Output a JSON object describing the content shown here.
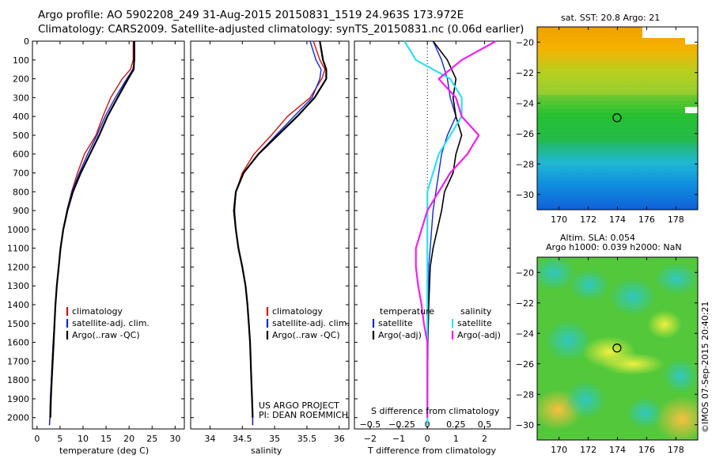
{
  "header": {
    "line1": "Argo profile: AO 5902208_249 31-Aug-2015 20150831_1519 24.963S 173.972E",
    "line2": "Climatology: CARS2009. Satellite-adjusted climatology: synTS_20150831.nc (0.06d earlier)"
  },
  "colors": {
    "climatology": "#d01010",
    "satellite": "#1028d0",
    "argo": "#000000",
    "salinity_satellite": "#30e0f0",
    "salinity_argo": "#f020f0"
  },
  "chart_data": [
    {
      "id": "temperature",
      "type": "line",
      "xlabel": "temperature (deg C)",
      "ylabel": "",
      "xlim": [
        -1,
        32
      ],
      "ylim": [
        2060,
        0
      ],
      "xticks": [
        0,
        5,
        10,
        15,
        20,
        25,
        30
      ],
      "yticks": [
        0,
        100,
        200,
        300,
        400,
        500,
        600,
        700,
        800,
        900,
        1000,
        1100,
        1200,
        1300,
        1400,
        1500,
        1600,
        1700,
        1800,
        1900,
        2000
      ],
      "legend": {
        "placement": "lower-center",
        "entries": [
          "climatology",
          "satellite-adj. clim.",
          "Argo(..raw -QC)"
        ]
      },
      "series": [
        {
          "name": "climatology",
          "color": "#d01010",
          "width": 1.4,
          "points": [
            [
              20.9,
              0
            ],
            [
              20.9,
              100
            ],
            [
              20.3,
              150
            ],
            [
              18.5,
              200
            ],
            [
              16,
              300
            ],
            [
              14.3,
              400
            ],
            [
              12.8,
              500
            ],
            [
              10.3,
              600
            ],
            [
              8.8,
              700
            ],
            [
              7.5,
              800
            ],
            [
              6.5,
              900
            ],
            [
              5.7,
              1000
            ],
            [
              5.1,
              1100
            ],
            [
              4.7,
              1200
            ],
            [
              4.3,
              1300
            ],
            [
              4,
              1400
            ],
            [
              3.8,
              1500
            ],
            [
              3.5,
              1600
            ],
            [
              3.3,
              1700
            ],
            [
              3.1,
              1800
            ],
            [
              2.9,
              1900
            ],
            [
              2.8,
              2000
            ],
            [
              2.7,
              2040
            ]
          ]
        },
        {
          "name": "satellite-adj. clim.",
          "color": "#1028d0",
          "width": 1.4,
          "points": [
            [
              21.2,
              0
            ],
            [
              21.2,
              100
            ],
            [
              20.8,
              150
            ],
            [
              19.5,
              200
            ],
            [
              17,
              300
            ],
            [
              14.8,
              400
            ],
            [
              13,
              500
            ],
            [
              11,
              600
            ],
            [
              9.2,
              700
            ],
            [
              7.6,
              800
            ],
            [
              6.5,
              900
            ],
            [
              5.7,
              1000
            ],
            [
              5.1,
              1100
            ],
            [
              4.7,
              1200
            ],
            [
              4.3,
              1300
            ],
            [
              4,
              1400
            ],
            [
              3.8,
              1500
            ],
            [
              3.5,
              1600
            ],
            [
              3.3,
              1700
            ],
            [
              3.1,
              1800
            ],
            [
              2.9,
              1900
            ],
            [
              2.8,
              2000
            ],
            [
              2.7,
              2040
            ]
          ]
        },
        {
          "name": "Argo(..raw -QC)",
          "color": "#000000",
          "width": 2.2,
          "points": [
            [
              21.1,
              0
            ],
            [
              21.1,
              100
            ],
            [
              21,
              150
            ],
            [
              19.8,
              200
            ],
            [
              17.5,
              300
            ],
            [
              15.3,
              400
            ],
            [
              13.5,
              500
            ],
            [
              11.5,
              600
            ],
            [
              9.5,
              700
            ],
            [
              7.8,
              800
            ],
            [
              6.6,
              900
            ],
            [
              5.7,
              1000
            ],
            [
              5.1,
              1100
            ],
            [
              4.7,
              1200
            ],
            [
              4.3,
              1300
            ],
            [
              4,
              1400
            ],
            [
              3.8,
              1500
            ],
            [
              3.6,
              1600
            ],
            [
              3.4,
              1700
            ],
            [
              3.2,
              1800
            ],
            [
              3,
              1900
            ],
            [
              2.9,
              2000
            ]
          ]
        }
      ]
    },
    {
      "id": "salinity",
      "type": "line",
      "xlabel": "salinity",
      "xlim": [
        33.7,
        36.15
      ],
      "ylim": [
        2060,
        0
      ],
      "xticks": [
        34,
        34.5,
        35,
        35.5,
        36
      ],
      "legend": {
        "placement": "lower-center",
        "entries": [
          "climatology",
          "satellite-adj. clim.",
          "Argo(..raw -QC)"
        ]
      },
      "annotation": {
        "line1": "US ARGO PROJECT",
        "line2": "PI: DEAN ROEMMICH"
      },
      "series": [
        {
          "name": "climatology",
          "color": "#d01010",
          "width": 1.4,
          "points": [
            [
              35.6,
              0
            ],
            [
              35.7,
              100
            ],
            [
              35.78,
              150
            ],
            [
              35.73,
              200
            ],
            [
              35.55,
              300
            ],
            [
              35.2,
              400
            ],
            [
              34.95,
              500
            ],
            [
              34.68,
              600
            ],
            [
              34.5,
              700
            ],
            [
              34.4,
              800
            ],
            [
              34.38,
              900
            ],
            [
              34.4,
              1000
            ],
            [
              34.44,
              1100
            ],
            [
              34.5,
              1200
            ],
            [
              34.55,
              1300
            ],
            [
              34.58,
              1400
            ],
            [
              34.6,
              1500
            ],
            [
              34.62,
              1600
            ],
            [
              34.63,
              1700
            ],
            [
              34.64,
              1800
            ],
            [
              34.65,
              1900
            ],
            [
              34.66,
              2000
            ],
            [
              34.66,
              2040
            ]
          ]
        },
        {
          "name": "satellite-adj. clim.",
          "color": "#1028d0",
          "width": 1.4,
          "points": [
            [
              35.55,
              0
            ],
            [
              35.64,
              100
            ],
            [
              35.72,
              150
            ],
            [
              35.7,
              200
            ],
            [
              35.58,
              300
            ],
            [
              35.3,
              400
            ],
            [
              35.02,
              500
            ],
            [
              34.75,
              600
            ],
            [
              34.52,
              700
            ],
            [
              34.4,
              800
            ],
            [
              34.38,
              900
            ],
            [
              34.4,
              1000
            ],
            [
              34.44,
              1100
            ],
            [
              34.5,
              1200
            ],
            [
              34.55,
              1300
            ],
            [
              34.58,
              1400
            ],
            [
              34.6,
              1500
            ],
            [
              34.62,
              1600
            ],
            [
              34.63,
              1700
            ],
            [
              34.64,
              1800
            ],
            [
              34.65,
              1900
            ],
            [
              34.66,
              2000
            ],
            [
              34.66,
              2040
            ]
          ]
        },
        {
          "name": "Argo(..raw -QC)",
          "color": "#000000",
          "width": 2.2,
          "points": [
            [
              35.7,
              0
            ],
            [
              35.75,
              100
            ],
            [
              35.8,
              150
            ],
            [
              35.8,
              200
            ],
            [
              35.62,
              300
            ],
            [
              35.35,
              400
            ],
            [
              35.05,
              500
            ],
            [
              34.75,
              600
            ],
            [
              34.52,
              700
            ],
            [
              34.4,
              800
            ],
            [
              34.37,
              900
            ],
            [
              34.4,
              1000
            ],
            [
              34.44,
              1100
            ],
            [
              34.5,
              1200
            ],
            [
              34.55,
              1300
            ],
            [
              34.58,
              1400
            ],
            [
              34.6,
              1500
            ],
            [
              34.62,
              1600
            ],
            [
              34.63,
              1700
            ],
            [
              34.64,
              1800
            ],
            [
              34.65,
              1900
            ],
            [
              34.66,
              2000
            ]
          ]
        }
      ]
    },
    {
      "id": "difference",
      "type": "line",
      "xlabel": "T difference from climatology",
      "xlabel2": "S difference from climatology",
      "xlim": [
        -2.55,
        2.9
      ],
      "ylim": [
        2060,
        0
      ],
      "xticks_t": [
        -2,
        -1,
        0,
        1,
        2
      ],
      "xticks_s": [
        -0.5,
        -0.25,
        0,
        0.25,
        0.5
      ],
      "xticks_s_labels": [
        "−0.5",
        "−0.25",
        "0",
        "0.25",
        "0.5"
      ],
      "xticks_t_labels": [
        "−2",
        "−1",
        "0",
        "1",
        "2"
      ],
      "legend": {
        "placement": "lower-center",
        "groups": [
          {
            "title": "temperature",
            "entries": [
              "satellite",
              "Argo(-adj)"
            ]
          },
          {
            "title": "salinity",
            "entries": [
              "satellite",
              "Argo(-adj)"
            ]
          }
        ]
      },
      "series": [
        {
          "name": "temperature satellite",
          "color": "#1028d0",
          "width": 1.4,
          "points": [
            [
              0.2,
              0
            ],
            [
              0.5,
              100
            ],
            [
              0.7,
              200
            ],
            [
              0.8,
              300
            ],
            [
              1,
              400
            ],
            [
              0.7,
              500
            ],
            [
              0.5,
              600
            ],
            [
              0.4,
              700
            ],
            [
              0.3,
              800
            ],
            [
              0.2,
              900
            ],
            [
              0.15,
              1000
            ],
            [
              0.1,
              1100
            ],
            [
              0.05,
              1200
            ],
            [
              0.03,
              1400
            ],
            [
              0,
              1600
            ],
            [
              0,
              2000
            ]
          ]
        },
        {
          "name": "temperature Argo(-adj)",
          "color": "#000000",
          "width": 1.6,
          "points": [
            [
              0.2,
              0
            ],
            [
              0.7,
              100
            ],
            [
              1,
              200
            ],
            [
              0.9,
              300
            ],
            [
              1,
              400
            ],
            [
              1.2,
              500
            ],
            [
              1,
              600
            ],
            [
              0.9,
              700
            ],
            [
              0.6,
              800
            ],
            [
              0.5,
              900
            ],
            [
              0.35,
              1000
            ],
            [
              0.2,
              1100
            ],
            [
              0.1,
              1200
            ],
            [
              0.05,
              1400
            ],
            [
              0.02,
              1600
            ],
            [
              0,
              2000
            ]
          ]
        },
        {
          "name": "salinity satellite",
          "color": "#30e0f0",
          "width": 2.2,
          "points": [
            [
              -0.2,
              0
            ],
            [
              -0.1,
              100
            ],
            [
              0.2,
              200
            ],
            [
              0.3,
              300
            ],
            [
              0.3,
              400
            ],
            [
              0.2,
              500
            ],
            [
              0.1,
              600
            ],
            [
              0.05,
              700
            ],
            [
              0,
              800
            ],
            [
              0,
              900
            ],
            [
              0,
              1000
            ],
            [
              0,
              1200
            ],
            [
              0,
              1400
            ],
            [
              0,
              1600
            ],
            [
              0,
              2040
            ]
          ]
        },
        {
          "name": "salinity Argo(-adj)",
          "color": "#f020f0",
          "width": 2.2,
          "points": [
            [
              0.6,
              0
            ],
            [
              0.3,
              100
            ],
            [
              0.1,
              200
            ],
            [
              0.25,
              300
            ],
            [
              0.3,
              400
            ],
            [
              0.45,
              500
            ],
            [
              0.35,
              600
            ],
            [
              0.2,
              700
            ],
            [
              0.1,
              800
            ],
            [
              0,
              900
            ],
            [
              -0.05,
              1000
            ],
            [
              -0.1,
              1100
            ],
            [
              -0.1,
              1200
            ],
            [
              -0.08,
              1300
            ],
            [
              -0.05,
              1400
            ],
            [
              -0.03,
              1500
            ],
            [
              0,
              1600
            ],
            [
              0,
              2000
            ]
          ]
        }
      ]
    },
    {
      "id": "map-sst",
      "type": "heatmap",
      "title": "sat. SST: 20.8 Argo: 21",
      "xlim": [
        168.5,
        179.5
      ],
      "ylim": [
        -31,
        -19
      ],
      "xticks": [
        170,
        172,
        174,
        176,
        178
      ],
      "yticks": [
        -20,
        -22,
        -24,
        -26,
        -28,
        -30
      ],
      "yticks_labels": [
        "−20",
        "−22",
        "−24",
        "−26",
        "−28",
        "−30"
      ],
      "marker": [
        173.97,
        -24.96
      ]
    },
    {
      "id": "map-sla",
      "type": "heatmap",
      "title_line1": "Altim. SLA: 0.054",
      "title_line2": "Argo h1000: 0.039 h2000: NaN",
      "xlim": [
        168.5,
        179.5
      ],
      "ylim": [
        -31,
        -19
      ],
      "xticks": [
        170,
        172,
        174,
        176,
        178
      ],
      "yticks": [
        -20,
        -22,
        -24,
        -26,
        -28,
        -30
      ],
      "yticks_labels": [
        "−20",
        "−22",
        "−24",
        "−26",
        "−28",
        "−30"
      ],
      "marker": [
        173.97,
        -24.96
      ]
    }
  ],
  "credit": "©IMOS 07-Sep-2015 20:40:21"
}
